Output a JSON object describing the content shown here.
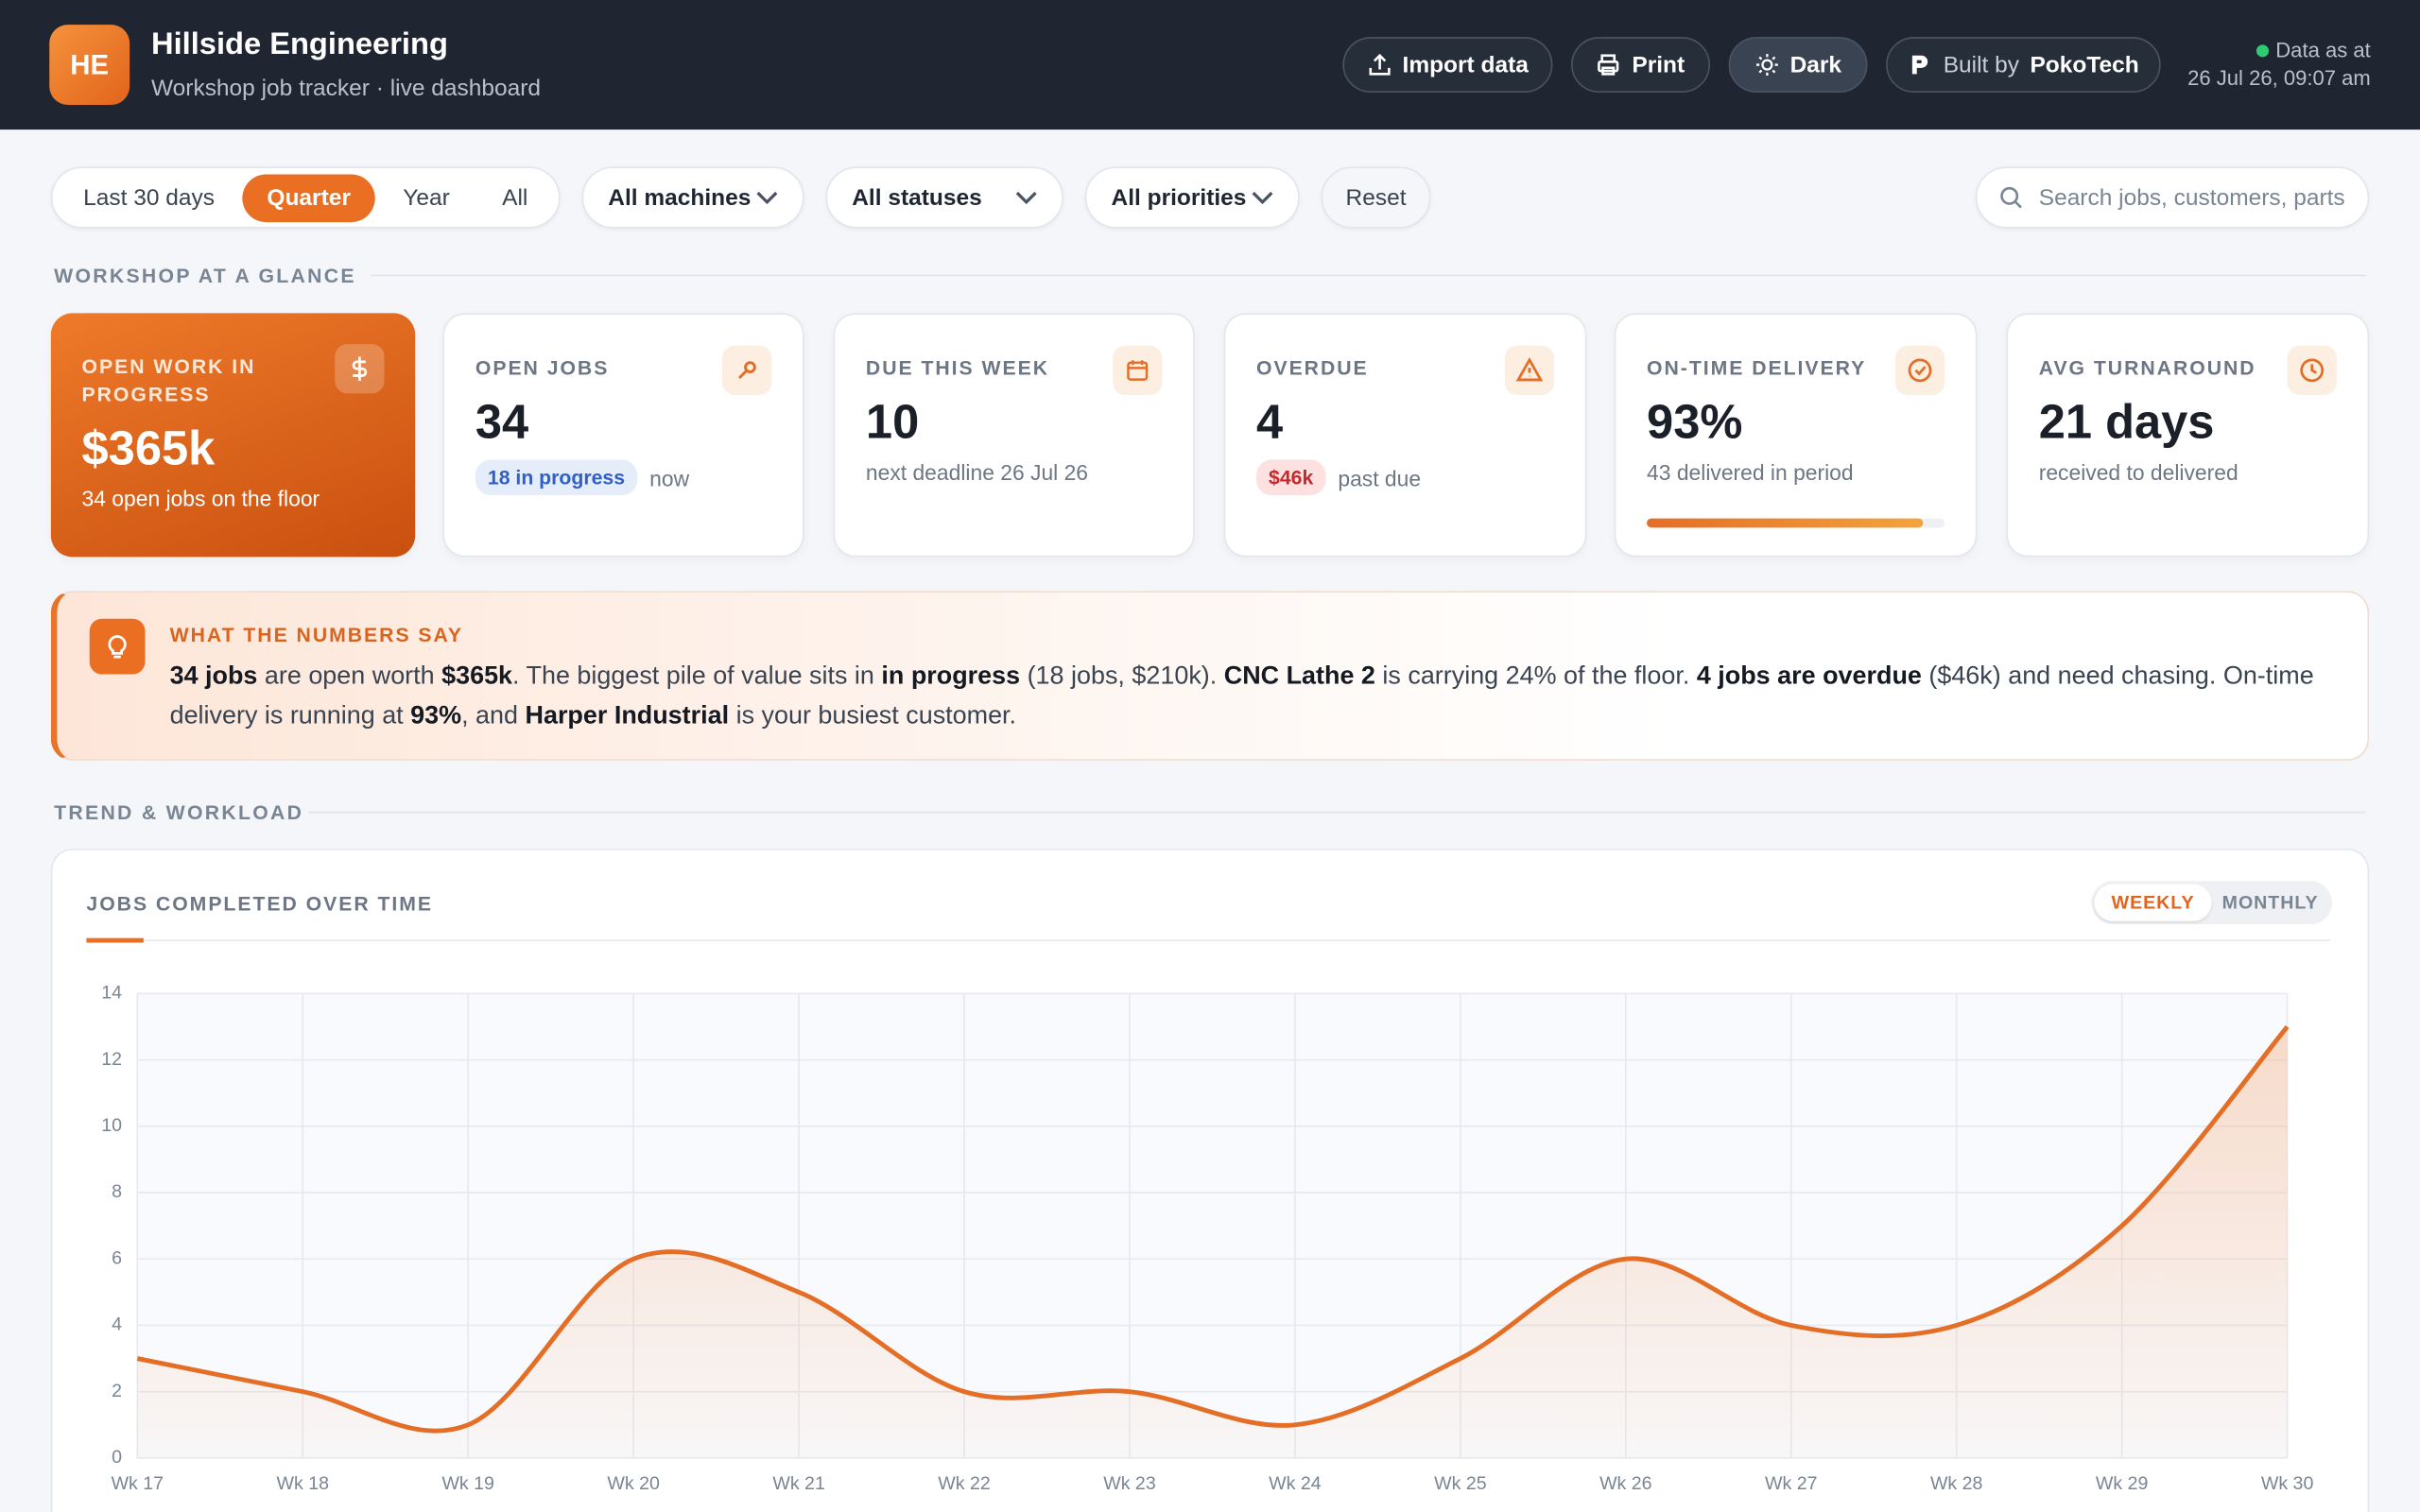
{
  "header": {
    "logo": "HE",
    "title": "Hillside Engineering",
    "subtitle": "Workshop job tracker · live dashboard",
    "buttons": [
      "Import data",
      "Print",
      "Dark"
    ],
    "built_by": "Built by",
    "brand": "PokoTech",
    "data_as_at": "Data as at",
    "timestamp": "26 Jul 26, 09:07 am"
  },
  "filters": {
    "periods": [
      "Last 30 days",
      "Quarter",
      "Year",
      "All"
    ],
    "active_period": 1,
    "dropdowns": [
      "All machines",
      "All statuses",
      "All priorities"
    ],
    "reset": "Reset",
    "search_placeholder": "Search jobs, customers, parts"
  },
  "sections": [
    "WORKSHOP AT A GLANCE",
    "TREND & WORKLOAD"
  ],
  "kpis": [
    {
      "label": "OPEN WORK IN PROGRESS",
      "value": "$365k",
      "note": "34 open jobs on the floor"
    },
    {
      "label": "OPEN JOBS",
      "value": "34",
      "badge": "18 in progress",
      "note": "now"
    },
    {
      "label": "DUE THIS WEEK",
      "value": "10",
      "note": "next deadline 26 Jul 26"
    },
    {
      "label": "OVERDUE",
      "value": "4",
      "badge": "$46k",
      "note": "past due"
    },
    {
      "label": "ON-TIME DELIVERY",
      "value": "93%",
      "note": "43 delivered in period",
      "progress": 93
    },
    {
      "label": "AVG TURNAROUND",
      "value": "21 days",
      "note": "received to delivered"
    }
  ],
  "insight": {
    "heading": "WHAT THE NUMBERS SAY",
    "segments": [
      {
        "text": "34 jobs",
        "bold": true
      },
      {
        "text": " are open worth ",
        "bold": false
      },
      {
        "text": "$365k",
        "bold": true
      },
      {
        "text": ". The biggest pile of value sits in ",
        "bold": false
      },
      {
        "text": "in progress",
        "bold": true
      },
      {
        "text": " (18 jobs, $210k). ",
        "bold": false
      },
      {
        "text": "CNC Lathe 2",
        "bold": true
      },
      {
        "text": " is carrying 24% of the floor. ",
        "bold": false
      },
      {
        "text": "4 jobs are overdue",
        "bold": true
      },
      {
        "text": " ($46k) and need chasing. On-time delivery is running at ",
        "bold": false
      },
      {
        "text": "93%",
        "bold": true
      },
      {
        "text": ", and ",
        "bold": false
      },
      {
        "text": "Harper Industrial",
        "bold": true
      },
      {
        "text": " is your busiest customer.",
        "bold": false
      }
    ]
  },
  "chart_views": [
    "WEEKLY",
    "MONTHLY"
  ],
  "chart_data": {
    "type": "line",
    "title": "JOBS COMPLETED OVER TIME",
    "color": "#e46e26",
    "grid": true,
    "categories": [
      "Wk 17",
      "Wk 18",
      "Wk 19",
      "Wk 20",
      "Wk 21",
      "Wk 22",
      "Wk 23",
      "Wk 24",
      "Wk 25",
      "Wk 26",
      "Wk 27",
      "Wk 28",
      "Wk 29",
      "Wk 30"
    ],
    "values": [
      3,
      2,
      1,
      6,
      5,
      2,
      2,
      1,
      3,
      6,
      4,
      4,
      7,
      13
    ],
    "ylim": [
      0,
      14
    ],
    "yticks": [
      0,
      2,
      4,
      6,
      8,
      10,
      12,
      14
    ]
  }
}
